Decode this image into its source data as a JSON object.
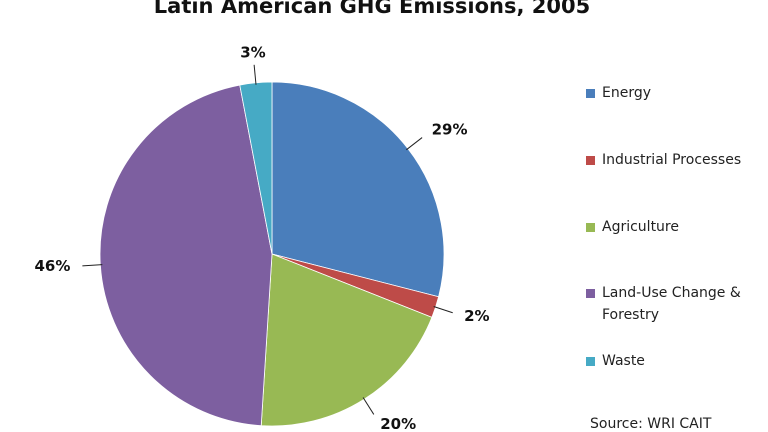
{
  "chart_data": {
    "type": "pie",
    "title": "Latin American GHG Emissions,  2005",
    "categories": [
      "Energy",
      "Industrial Processes",
      "Agriculture",
      "Land-Use Change & Forestry",
      "Waste"
    ],
    "values": [
      29,
      2,
      20,
      46,
      3
    ],
    "value_labels": [
      "29%",
      "2%",
      "20%",
      "46%",
      "3%"
    ],
    "colors": [
      "#4a7ebb",
      "#be4b48",
      "#98b954",
      "#7d5fa0",
      "#46aac5"
    ],
    "source": "Source: WRI CAIT"
  }
}
